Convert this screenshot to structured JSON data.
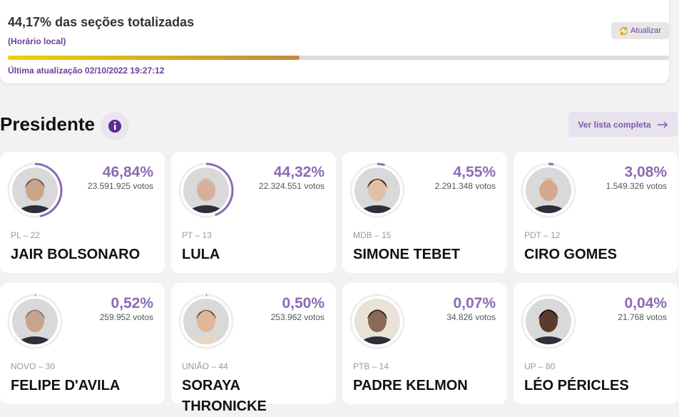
{
  "header": {
    "percent": {
      "value": 44.17,
      "label": "44,17%"
    },
    "title_suffix": "das seções totalizadas",
    "subtitle": "(Horário local)",
    "refresh_button": "Atualizar",
    "last_update": "Última atualização 02/10/2022 19:27:12"
  },
  "section": {
    "title": "Presidente",
    "full_list_button": "Ver lista completa"
  },
  "candidates": [
    {
      "party": "PL – 22",
      "name": "JAIR BOLSONARO",
      "percent": {
        "value": 46.84,
        "label": "46,84%"
      },
      "votes": "23.591.925 votos"
    },
    {
      "party": "PT – 13",
      "name": "LULA",
      "percent": {
        "value": 44.32,
        "label": "44,32%"
      },
      "votes": "22.324.551 votos"
    },
    {
      "party": "MDB – 15",
      "name": "SIMONE TEBET",
      "percent": {
        "value": 4.55,
        "label": "4,55%"
      },
      "votes": "2.291.348 votos"
    },
    {
      "party": "PDT – 12",
      "name": "CIRO GOMES",
      "percent": {
        "value": 3.08,
        "label": "3,08%"
      },
      "votes": "1.549.326 votos"
    },
    {
      "party": "NOVO – 30",
      "name": "FELIPE D'AVILA",
      "percent": {
        "value": 0.52,
        "label": "0,52%"
      },
      "votes": "259.952 votos"
    },
    {
      "party": "UNIÃO – 44",
      "name": "SORAYA THRONICKE",
      "percent": {
        "value": 0.5,
        "label": "0,50%"
      },
      "votes": "253.962 votos"
    },
    {
      "party": "PTB – 14",
      "name": "PADRE KELMON",
      "percent": {
        "value": 0.07,
        "label": "0,07%"
      },
      "votes": "34.826 votos"
    },
    {
      "party": "UP – 80",
      "name": "LÉO PÉRICLES",
      "percent": {
        "value": 0.04,
        "label": "0,04%"
      },
      "votes": "21.768 votos"
    }
  ]
}
